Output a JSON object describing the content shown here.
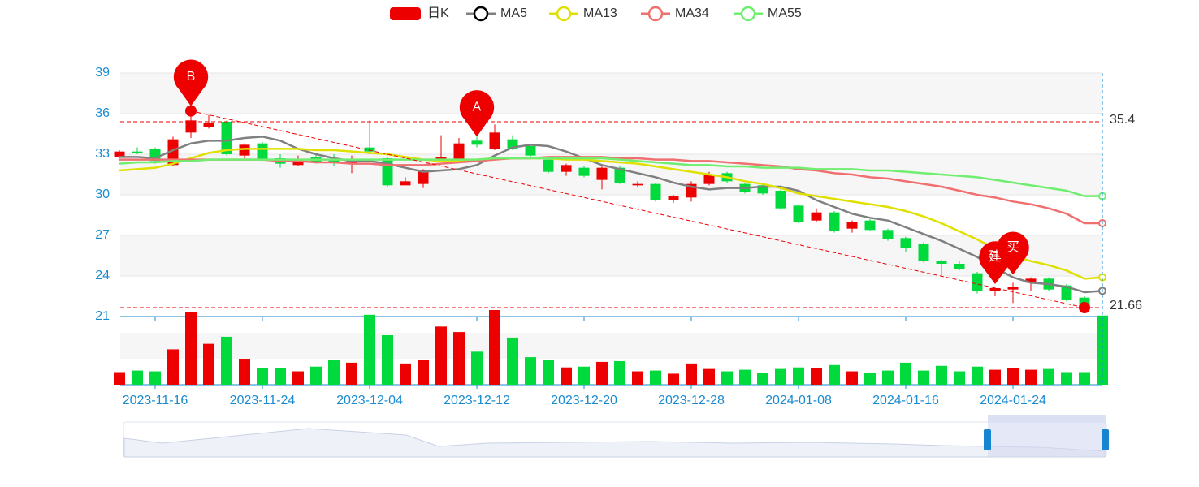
{
  "chart_data": {
    "type": "candlestick",
    "categories": [
      null,
      null,
      "2023-11-16",
      null,
      null,
      null,
      null,
      null,
      "2023-11-24",
      null,
      null,
      null,
      null,
      null,
      "2023-12-04",
      null,
      null,
      null,
      null,
      null,
      "2023-12-12",
      null,
      null,
      null,
      null,
      null,
      "2023-12-20",
      null,
      null,
      null,
      null,
      null,
      "2023-12-28",
      null,
      null,
      null,
      null,
      null,
      "2024-01-08",
      null,
      null,
      null,
      null,
      null,
      "2024-01-16",
      null,
      null,
      null,
      null,
      null,
      "2024-01-24",
      null,
      null,
      null,
      null,
      null
    ],
    "candles": {
      "name": "日K",
      "up_color": "#ec0000",
      "down_color": "#00da3c",
      "values": [
        [
          32.8,
          33.2,
          32.7,
          33.3
        ],
        [
          33.2,
          33.1,
          33.0,
          33.5
        ],
        [
          33.4,
          32.5,
          32.3,
          33.5
        ],
        [
          32.2,
          34.1,
          32.1,
          34.3
        ],
        [
          34.6,
          35.5,
          34.2,
          36.2
        ],
        [
          35.0,
          35.3,
          34.9,
          35.9
        ],
        [
          35.4,
          33.0,
          32.9,
          35.5
        ],
        [
          32.9,
          33.7,
          32.7,
          33.8
        ],
        [
          33.8,
          32.6,
          32.5,
          33.9
        ],
        [
          32.7,
          32.3,
          32.0,
          33.0
        ],
        [
          32.2,
          32.6,
          32.1,
          32.9
        ],
        [
          32.8,
          32.4,
          32.3,
          33.0
        ],
        [
          32.6,
          32.4,
          32.1,
          33.0
        ],
        [
          32.3,
          32.5,
          31.6,
          32.9
        ],
        [
          33.5,
          33.2,
          33.0,
          35.5
        ],
        [
          32.7,
          30.7,
          30.6,
          32.8
        ],
        [
          30.7,
          31.0,
          30.7,
          31.3
        ],
        [
          30.8,
          31.8,
          30.5,
          31.9
        ],
        [
          32.5,
          32.8,
          32.4,
          34.4
        ],
        [
          32.6,
          33.8,
          32.5,
          34.2
        ],
        [
          34.0,
          33.7,
          33.5,
          34.3
        ],
        [
          33.4,
          34.6,
          33.3,
          35.2
        ],
        [
          34.1,
          33.4,
          33.3,
          34.4
        ],
        [
          33.6,
          32.9,
          32.8,
          33.7
        ],
        [
          32.6,
          31.7,
          31.6,
          32.7
        ],
        [
          31.7,
          32.2,
          31.4,
          32.3
        ],
        [
          32.0,
          31.4,
          31.3,
          32.1
        ],
        [
          31.1,
          32.0,
          30.4,
          32.1
        ],
        [
          32.0,
          30.9,
          30.8,
          32.1
        ],
        [
          30.7,
          30.8,
          30.6,
          31.0
        ],
        [
          30.8,
          29.6,
          29.5,
          30.9
        ],
        [
          29.6,
          29.9,
          29.4,
          30.0
        ],
        [
          29.8,
          30.8,
          29.5,
          31.0
        ],
        [
          30.8,
          31.5,
          30.7,
          31.7
        ],
        [
          31.6,
          31.0,
          30.9,
          31.7
        ],
        [
          30.8,
          30.2,
          30.1,
          30.9
        ],
        [
          30.7,
          30.1,
          30.0,
          30.8
        ],
        [
          30.3,
          29.0,
          28.9,
          30.4
        ],
        [
          29.2,
          28.0,
          27.9,
          29.3
        ],
        [
          28.1,
          28.7,
          28.0,
          29.0
        ],
        [
          28.7,
          27.3,
          27.2,
          28.8
        ],
        [
          27.5,
          28.0,
          27.2,
          28.1
        ],
        [
          28.1,
          27.4,
          27.3,
          28.2
        ],
        [
          27.4,
          26.7,
          26.6,
          27.5
        ],
        [
          26.8,
          26.1,
          25.8,
          26.9
        ],
        [
          26.4,
          25.1,
          25.0,
          26.5
        ],
        [
          25.1,
          24.9,
          24.0,
          25.2
        ],
        [
          24.9,
          24.5,
          24.4,
          25.1
        ],
        [
          24.2,
          22.9,
          22.7,
          24.3
        ],
        [
          22.9,
          23.1,
          22.5,
          23.2
        ],
        [
          23.0,
          23.2,
          22.0,
          23.5
        ],
        [
          23.5,
          23.8,
          22.9,
          23.9
        ],
        [
          23.8,
          23.0,
          22.9,
          23.9
        ],
        [
          23.3,
          22.2,
          22.1,
          23.4
        ],
        [
          22.4,
          21.7,
          21.6,
          22.5
        ],
        null
      ]
    },
    "series": [
      {
        "name": "MA5",
        "color": "#808080",
        "values": [
          32.8,
          32.8,
          32.7,
          33.3,
          33.8,
          34.0,
          34.0,
          34.2,
          34.3,
          34.0,
          33.4,
          33.0,
          32.7,
          32.5,
          32.5,
          32.3,
          32.0,
          31.7,
          31.8,
          31.9,
          32.2,
          32.9,
          33.5,
          33.7,
          33.6,
          33.2,
          32.7,
          32.2,
          31.9,
          31.6,
          31.3,
          30.9,
          30.6,
          30.4,
          30.5,
          30.5,
          30.6,
          30.6,
          30.3,
          29.6,
          29.1,
          28.6,
          28.3,
          28.1,
          27.6,
          27.1,
          26.6,
          26.0,
          25.4,
          24.6,
          23.9,
          23.5,
          23.4,
          23.2,
          22.8,
          22.9
        ]
      },
      {
        "name": "MA13",
        "color": "#e0e000",
        "values": [
          31.8,
          31.9,
          32.0,
          32.3,
          32.7,
          33.1,
          33.3,
          33.4,
          33.4,
          33.4,
          33.4,
          33.3,
          33.3,
          33.2,
          33.1,
          33.0,
          32.8,
          32.6,
          32.5,
          32.5,
          32.6,
          32.7,
          32.7,
          32.7,
          32.7,
          32.6,
          32.6,
          32.5,
          32.4,
          32.3,
          32.1,
          31.9,
          31.7,
          31.5,
          31.3,
          31.0,
          30.8,
          30.5,
          30.1,
          29.9,
          29.7,
          29.5,
          29.3,
          29.1,
          28.8,
          28.4,
          27.9,
          27.3,
          26.7,
          26.0,
          25.5,
          25.1,
          24.8,
          24.4,
          23.8,
          23.9
        ]
      },
      {
        "name": "MA34",
        "color": "#f07070",
        "values": [
          32.6,
          32.6,
          32.6,
          32.6,
          32.6,
          32.6,
          32.6,
          32.6,
          32.6,
          32.5,
          32.5,
          32.4,
          32.4,
          32.3,
          32.3,
          32.2,
          32.2,
          32.2,
          32.3,
          32.4,
          32.5,
          32.6,
          32.7,
          32.7,
          32.8,
          32.8,
          32.8,
          32.8,
          32.7,
          32.7,
          32.6,
          32.6,
          32.5,
          32.5,
          32.4,
          32.3,
          32.2,
          32.1,
          31.9,
          31.8,
          31.6,
          31.5,
          31.3,
          31.2,
          31.0,
          30.8,
          30.6,
          30.3,
          30.0,
          29.8,
          29.5,
          29.3,
          29.0,
          28.6,
          27.9,
          27.9
        ]
      },
      {
        "name": "MA55",
        "color": "#70ee70",
        "values": [
          32.3,
          32.4,
          32.4,
          32.5,
          32.5,
          32.6,
          32.6,
          32.6,
          32.6,
          32.6,
          32.6,
          32.6,
          32.6,
          32.6,
          32.6,
          32.6,
          32.6,
          32.6,
          32.6,
          32.6,
          32.6,
          32.7,
          32.7,
          32.7,
          32.7,
          32.7,
          32.7,
          32.7,
          32.6,
          32.5,
          32.4,
          32.3,
          32.2,
          32.2,
          32.1,
          32.1,
          32.0,
          32.0,
          32.0,
          31.9,
          31.9,
          31.9,
          31.8,
          31.8,
          31.7,
          31.6,
          31.5,
          31.4,
          31.3,
          31.1,
          30.9,
          30.7,
          30.5,
          30.3,
          29.9,
          29.9
        ]
      }
    ],
    "volume": {
      "values": [
        16,
        18,
        17,
        45,
        92,
        52,
        61,
        33,
        21,
        21,
        17,
        23,
        31,
        28,
        89,
        63,
        27,
        31,
        74,
        67,
        42,
        95,
        60,
        35,
        31,
        22,
        23,
        29,
        30,
        17,
        18,
        14,
        27,
        20,
        17,
        19,
        15,
        20,
        22,
        21,
        25,
        17,
        15,
        18,
        28,
        18,
        24,
        17,
        23,
        19,
        21,
        19,
        20,
        16,
        16,
        88
      ]
    },
    "ylim": [
      21,
      39
    ],
    "yticks": [
      21,
      24,
      27,
      30,
      33,
      36,
      39
    ],
    "mark_lines": [
      35.4,
      21.66
    ],
    "mark_points": [
      {
        "label": "B",
        "x": 4,
        "value": 36.2
      },
      {
        "label": "A",
        "x": 20,
        "value": 34.3
      },
      {
        "label": "建",
        "x": 49,
        "value": 23.4
      },
      {
        "label": "买",
        "x": 50,
        "value": 24.1
      }
    ],
    "end_point": {
      "x": 54,
      "value": 21.66
    }
  }
}
